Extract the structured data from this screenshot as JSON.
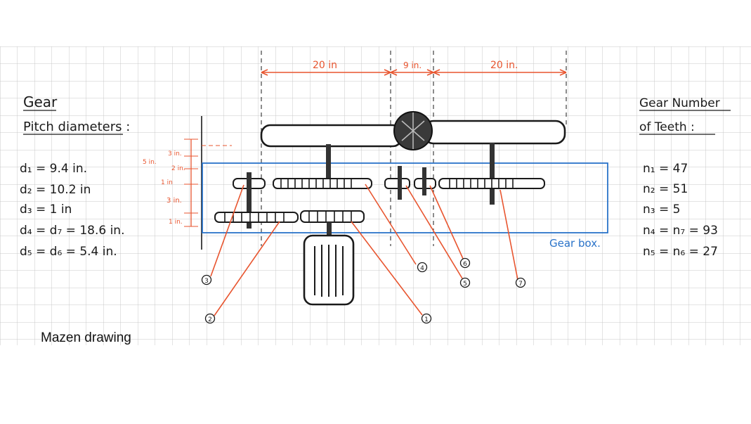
{
  "left_panel": {
    "title_line1": "Gear",
    "title_line2": "Pitch diameters :",
    "rows": [
      "d₁ = 9.4 in.",
      "d₂ = 10.2 in",
      "d₃ = 1 in",
      "d₄ = d₇ = 18.6 in.",
      "d₅ = d₆ = 5.4 in."
    ]
  },
  "right_panel": {
    "title_line1": "Gear Number",
    "title_line2": "of Teeth :",
    "rows": [
      "n₁ = 47",
      "n₂ = 51",
      "n₃ = 5",
      "n₄ = n₇ = 93",
      "n₅ = n₆ = 27"
    ]
  },
  "dimensions": {
    "top": [
      "20 in",
      "9 in.",
      "20 in."
    ],
    "side": [
      "3 in.",
      "2 in.",
      "5 in.",
      "1 in",
      "3 in.",
      "1 in."
    ]
  },
  "gearbox_label": "Gear box.",
  "callouts": [
    "1",
    "2",
    "3",
    "4",
    "5",
    "6",
    "7"
  ],
  "caption": "Mazen drawing",
  "colors": {
    "ink": "#1a1a1a",
    "dimension": "#e8552f",
    "gearbox": "#2a73c9",
    "grid": "#c9c9c9"
  }
}
